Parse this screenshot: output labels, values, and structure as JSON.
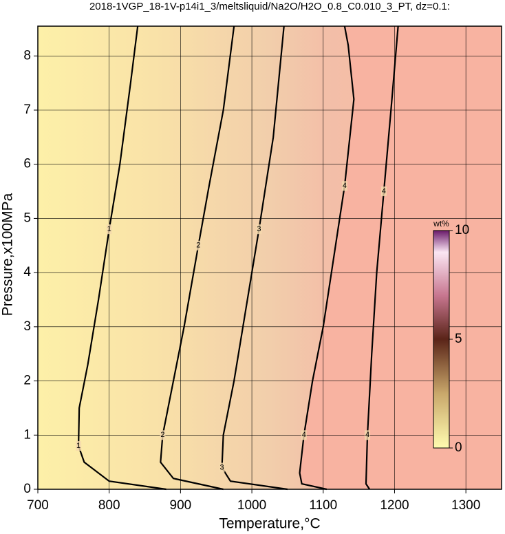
{
  "chart_data": {
    "type": "contour",
    "title": "2018-1VGP_18-1V-p14i1_3/meltsliquid/Na2O/H2O_0.8_C0.010_3_PT, dz=0.1:",
    "x_label": "Temperature,°C",
    "y_label": "Pressure,x100MPa",
    "xlim": [
      700,
      1350
    ],
    "ylim": [
      0,
      8.55
    ],
    "xticks": [
      700,
      800,
      900,
      1000,
      1100,
      1200,
      1300
    ],
    "yticks": [
      0,
      1,
      2,
      3,
      4,
      5,
      6,
      7,
      8
    ],
    "grid": true,
    "contours": [
      {
        "level": 1,
        "x": [
          880,
          800,
          765,
          757,
          758,
          770,
          785,
          800,
          815,
          830,
          840
        ],
        "y": [
          0,
          0.15,
          0.5,
          0.8,
          1.5,
          2.3,
          3.5,
          4.8,
          6,
          7.5,
          8.55
        ]
      },
      {
        "level": 2,
        "x": [
          960,
          890,
          872,
          875,
          890,
          905,
          925,
          940,
          960,
          975
        ],
        "y": [
          0,
          0.2,
          0.5,
          1,
          2,
          3,
          4.5,
          5.6,
          7,
          8.55
        ]
      },
      {
        "level": 3,
        "x": [
          1050,
          970,
          958,
          960,
          975,
          990,
          1010,
          1030,
          1045
        ],
        "y": [
          0,
          0.15,
          0.4,
          1,
          2,
          3.2,
          4.8,
          6.5,
          8.55
        ]
      },
      {
        "level": 4,
        "x": [
          1105,
          1070,
          1067,
          1073,
          1085,
          1100,
          1115,
          1130,
          1143,
          1135,
          1130
        ],
        "y": [
          0,
          0.1,
          0.3,
          1,
          2,
          3,
          4.3,
          5.6,
          7.2,
          8.2,
          8.55
        ]
      },
      {
        "level": 4,
        "x": [
          1165,
          1160,
          1162,
          1168,
          1175,
          1185,
          1195,
          1205
        ],
        "y": [
          0,
          0.1,
          1,
          2.5,
          4,
          5.5,
          7,
          8.55
        ]
      }
    ],
    "colorbar": {
      "label": "wt%",
      "lim": [
        0,
        10
      ],
      "ticks": [
        0,
        5,
        10
      ]
    }
  }
}
